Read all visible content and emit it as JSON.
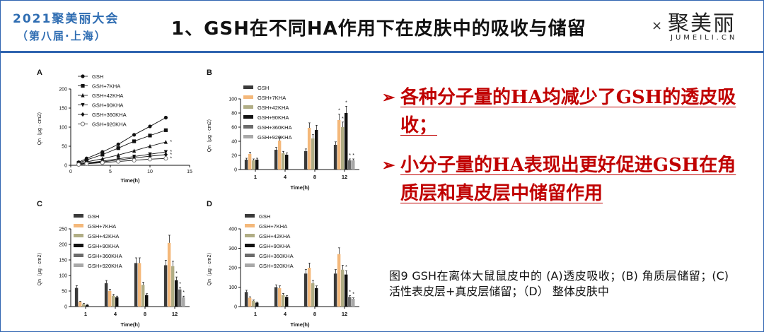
{
  "header": {
    "event_line1": "2021聚美丽大会",
    "event_line2": "（第八届·上海）",
    "title": "1、GSH在不同HA作用下在皮肤中的吸收与储留",
    "x_mark": "×",
    "logo_cn": "聚美丽",
    "logo_en": "JUMEILI.CN"
  },
  "bullets": [
    "各种分子量的HA均减少了GSH的透皮吸收；",
    "小分子量的HA表现出更好促进GSH在角质层和真皮层中储留作用"
  ],
  "bullet_symbol": "➢",
  "caption": "图9 GSH在离体大鼠鼠皮中的 (A)透皮吸收；(B) 角质层储留；(C)活性表皮层+真皮层储留；（D） 整体皮肤中",
  "chart_data": [
    {
      "panel": "A",
      "type": "line",
      "xlabel": "Time(h)",
      "ylabel": "Qn（μg · cm2）",
      "x": [
        1,
        2,
        4,
        6,
        8,
        10,
        12
      ],
      "xlim": [
        0,
        15
      ],
      "xticks": [
        0,
        5,
        10,
        15
      ],
      "ylim": [
        0,
        200
      ],
      "yticks": [
        0,
        50,
        100,
        150,
        200
      ],
      "series": [
        {
          "name": "GSH",
          "marker": "circle-filled",
          "values": [
            8,
            18,
            35,
            55,
            80,
            102,
            125
          ]
        },
        {
          "name": "GSH+7KHA",
          "marker": "square",
          "values": [
            6,
            14,
            28,
            45,
            63,
            78,
            92
          ]
        },
        {
          "name": "GSH+42KHA",
          "marker": "triangle-up",
          "values": [
            4,
            9,
            17,
            27,
            38,
            50,
            61
          ]
        },
        {
          "name": "GSH+90KHA",
          "marker": "triangle-down",
          "values": [
            3,
            6,
            11,
            17,
            23,
            29,
            35
          ]
        },
        {
          "name": "GSH+360KHA",
          "marker": "diamond",
          "values": [
            2,
            5,
            9,
            14,
            19,
            24,
            28
          ]
        },
        {
          "name": "GSH+920KHA",
          "marker": "circle-open",
          "values": [
            2,
            4,
            7,
            10,
            13,
            16,
            18
          ]
        }
      ],
      "annotations": [
        "*",
        "*",
        "*",
        "*"
      ]
    },
    {
      "panel": "B",
      "type": "bar",
      "xlabel": "Time(h)",
      "ylabel": "Qn（μg · cm2）",
      "categories": [
        "1",
        "4",
        "8",
        "12"
      ],
      "ylim": [
        0,
        100
      ],
      "yticks": [
        0,
        20,
        40,
        60,
        80,
        100
      ],
      "series": [
        {
          "name": "GSH",
          "values": [
            14,
            28,
            26,
            35
          ]
        },
        {
          "name": "GSH+7KHA",
          "values": [
            22,
            41,
            59,
            70
          ]
        },
        {
          "name": "GSH+42KHA",
          "values": [
            13,
            23,
            44,
            60
          ]
        },
        {
          "name": "GSH+90KHA",
          "values": [
            14,
            21,
            56,
            80
          ]
        },
        {
          "name": "GSH+360KHA",
          "values": [
            0,
            0,
            0,
            13
          ]
        },
        {
          "name": "GSH+920KHA",
          "values": [
            0,
            0,
            0,
            13
          ]
        }
      ],
      "annotations": [
        "*",
        "*",
        "*",
        "*",
        "*"
      ]
    },
    {
      "panel": "C",
      "type": "bar",
      "xlabel": "Time(h)",
      "ylabel": "Qn（μg · cm2）",
      "categories": [
        "1",
        "4",
        "8",
        "12"
      ],
      "ylim": [
        0,
        250
      ],
      "yticks": [
        0,
        50,
        100,
        150,
        200,
        250
      ],
      "series": [
        {
          "name": "GSH",
          "values": [
            60,
            75,
            140,
            133
          ]
        },
        {
          "name": "GSH+7KHA",
          "values": [
            15,
            50,
            140,
            205
          ]
        },
        {
          "name": "GSH+42KHA",
          "values": [
            8,
            35,
            70,
            130
          ]
        },
        {
          "name": "GSH+90KHA",
          "values": [
            5,
            30,
            37,
            85
          ]
        },
        {
          "name": "GSH+360KHA",
          "values": [
            0,
            0,
            0,
            55
          ]
        },
        {
          "name": "GSH+920KHA",
          "values": [
            0,
            0,
            0,
            30
          ]
        }
      ],
      "annotations": [
        "*",
        "*",
        "*"
      ]
    },
    {
      "panel": "D",
      "type": "bar",
      "xlabel": "Time(h)",
      "ylabel": "Qn（μg · cm2）",
      "categories": [
        "1",
        "4",
        "8",
        "12"
      ],
      "ylim": [
        0,
        400
      ],
      "yticks": [
        0,
        100,
        200,
        300,
        400
      ],
      "series": [
        {
          "name": "GSH",
          "values": [
            75,
            100,
            170,
            170
          ]
        },
        {
          "name": "GSH+7KHA",
          "values": [
            45,
            95,
            200,
            270
          ]
        },
        {
          "name": "GSH+42KHA",
          "values": [
            30,
            60,
            120,
            190
          ]
        },
        {
          "name": "GSH+90KHA",
          "values": [
            20,
            50,
            95,
            165
          ]
        },
        {
          "name": "GSH+360KHA",
          "values": [
            0,
            0,
            0,
            50
          ]
        },
        {
          "name": "GSH+920KHA",
          "values": [
            0,
            0,
            0,
            40
          ]
        }
      ],
      "annotations": [
        "*",
        "*",
        "*"
      ]
    }
  ],
  "bar_colors": [
    "#3a3a3a",
    "#f4b87a",
    "#b0ad85",
    "#111111",
    "#6b6b6b",
    "#a8a8a8"
  ],
  "accent_color": "#2f64b0",
  "bullet_color": "#c00000"
}
